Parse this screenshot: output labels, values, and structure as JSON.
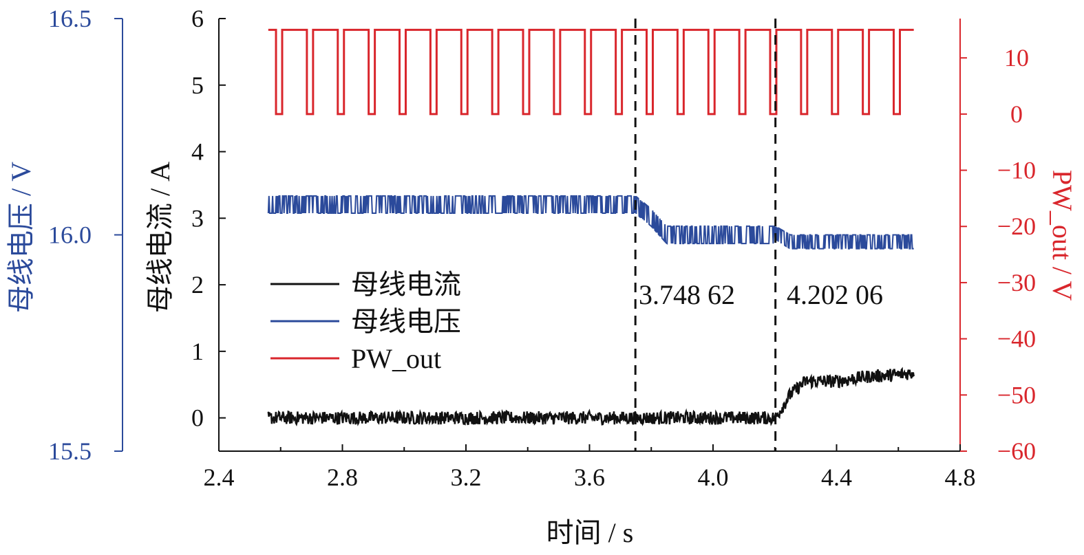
{
  "colors": {
    "current": "#111111",
    "voltage": "#2b4a9b",
    "pw": "#d9262c",
    "vline": "#111111"
  },
  "chart_data": {
    "type": "line",
    "xlabel": "时间 / s",
    "xlim": [
      2.4,
      4.8
    ],
    "xticks": [
      "2.4",
      "2.8",
      "3.2",
      "3.6",
      "4.0",
      "4.4",
      "4.8"
    ],
    "y_current": {
      "label": "母线电流 / A",
      "lim": [
        -0.5,
        6
      ],
      "ticks": [
        "0",
        "1",
        "2",
        "3",
        "4",
        "5",
        "6"
      ]
    },
    "y_voltage": {
      "label": "母线电压 / V",
      "lim": [
        15.5,
        16.5
      ],
      "ticks": [
        "15.5",
        "16.0",
        "16.5"
      ]
    },
    "y_pw": {
      "label": "PW_out / V",
      "lim": [
        -60,
        17
      ],
      "ticks": [
        "10",
        "0",
        "−10",
        "−20",
        "−30",
        "−40",
        "−50",
        "−60"
      ]
    },
    "legend": {
      "position": "center-left",
      "entries": [
        "母线电流",
        "母线电压",
        "PW_out"
      ]
    },
    "annotations": [
      {
        "x": 3.74862,
        "label": "3.748 62"
      },
      {
        "x": 4.20206,
        "label": "4.202 06"
      }
    ],
    "series": [
      {
        "name": "母线电流",
        "axis": "y_current",
        "x": [
          2.56,
          3.74862,
          4.20206,
          4.25,
          4.3,
          4.4,
          4.5,
          4.6,
          4.65
        ],
        "values": [
          0.0,
          0.0,
          0.0,
          0.35,
          0.55,
          0.55,
          0.62,
          0.65,
          0.68
        ]
      },
      {
        "name": "母线电压",
        "axis": "y_voltage",
        "x": [
          2.56,
          3.74862,
          3.8,
          3.85,
          4.20206,
          4.25,
          4.65
        ],
        "values": [
          16.09,
          16.09,
          16.06,
          16.02,
          16.02,
          16.0,
          16.0
        ]
      },
      {
        "name": "PW_out",
        "axis": "y_pw",
        "high": 15,
        "low": 0,
        "x_start": 2.56,
        "x_end": 4.65,
        "period": 0.1,
        "low_duration": 0.02
      }
    ]
  }
}
